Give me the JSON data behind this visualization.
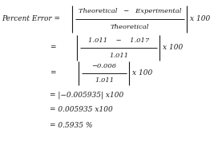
{
  "background_color": "#ffffff",
  "text_color": "#1a1a1a",
  "font_family": "serif",
  "line1_num": "Theoretical   −   Experimental",
  "line1_den": "Theoretical",
  "line2_num": "1.011    −    1.017",
  "line2_den": "1.011",
  "line3_num": "−0.006",
  "line3_den": "1.011",
  "line4": "= |−0.005935| x100",
  "line5": "= 0.005935 x100",
  "line6": "= 0.5935 %",
  "label": "Percent Error =",
  "eq_sign": "=",
  "x100": "x 100",
  "x100b": "x 100",
  "x100c": "x 100",
  "fs": 6.5,
  "fs_small": 6.0
}
